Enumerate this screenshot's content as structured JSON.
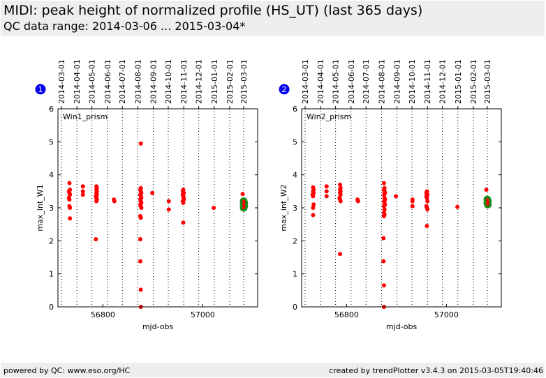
{
  "header": {
    "title": "MIDI: peak height of normalized profile (HS_UT) (last 365 days)",
    "subtitle": "QC data range: 2014-03-06 ... 2015-03-04*"
  },
  "footer": {
    "left": "powered by QC: www.eso.org/HC",
    "right": "created by trendPlotter v3.4.3 on 2015-03-05T19:40:46"
  },
  "colors": {
    "data_point": "#ff0000",
    "latest_marker": "#1a8a1a",
    "badge": "#0000ee",
    "header_bg": "#eeeeee"
  },
  "chart_data": [
    {
      "type": "scatter",
      "badge": "1",
      "panel_label": "Win1_prism",
      "xlabel": "mjd-obs",
      "ylabel": "max_int_W1",
      "xlim": [
        56710,
        57110
      ],
      "ylim": [
        0,
        6
      ],
      "x_ticks": [
        56800,
        57000
      ],
      "y_ticks": [
        0,
        1,
        2,
        3,
        4,
        5,
        6
      ],
      "date_ticks": [
        {
          "label": "2014-03-01",
          "mjd": 56717
        },
        {
          "label": "2014-04-01",
          "mjd": 56748
        },
        {
          "label": "2014-05-01",
          "mjd": 56778
        },
        {
          "label": "2014-06-01",
          "mjd": 56809
        },
        {
          "label": "2014-07-01",
          "mjd": 56839
        },
        {
          "label": "2014-08-01",
          "mjd": 56870
        },
        {
          "label": "2014-09-01",
          "mjd": 56901
        },
        {
          "label": "2014-10-01",
          "mjd": 56931
        },
        {
          "label": "2014-11-01",
          "mjd": 56962
        },
        {
          "label": "2014-12-01",
          "mjd": 56992
        },
        {
          "label": "2015-01-01",
          "mjd": 57023
        },
        {
          "label": "2015-02-01",
          "mjd": 57054
        },
        {
          "label": "2015-03-01",
          "mjd": 57082
        }
      ],
      "points": [
        [
          56733,
          3.75
        ],
        [
          56732,
          3.5
        ],
        [
          56733,
          3.45
        ],
        [
          56734,
          3.4
        ],
        [
          56732,
          3.3
        ],
        [
          56733,
          3.25
        ],
        [
          56734,
          3.55
        ],
        [
          56733,
          3.05
        ],
        [
          56734,
          3.0
        ],
        [
          56734,
          2.68
        ],
        [
          56760,
          3.65
        ],
        [
          56760,
          3.5
        ],
        [
          56760,
          3.4
        ],
        [
          56787,
          3.65
        ],
        [
          56788,
          3.6
        ],
        [
          56787,
          3.55
        ],
        [
          56788,
          3.5
        ],
        [
          56787,
          3.45
        ],
        [
          56788,
          3.4
        ],
        [
          56786,
          3.35
        ],
        [
          56787,
          3.3
        ],
        [
          56788,
          3.25
        ],
        [
          56787,
          3.2
        ],
        [
          56786,
          2.05
        ],
        [
          56822,
          3.25
        ],
        [
          56823,
          3.2
        ],
        [
          56876,
          4.95
        ],
        [
          56876,
          3.6
        ],
        [
          56875,
          3.55
        ],
        [
          56876,
          3.5
        ],
        [
          56877,
          3.45
        ],
        [
          56875,
          3.4
        ],
        [
          56876,
          3.35
        ],
        [
          56877,
          3.3
        ],
        [
          56875,
          3.25
        ],
        [
          56876,
          3.2
        ],
        [
          56877,
          3.15
        ],
        [
          56875,
          3.1
        ],
        [
          56876,
          3.05
        ],
        [
          56877,
          3.0
        ],
        [
          56875,
          2.75
        ],
        [
          56876,
          2.7
        ],
        [
          56875,
          2.05
        ],
        [
          56875,
          1.38
        ],
        [
          56876,
          0.52
        ],
        [
          56876,
          0.0
        ],
        [
          56899,
          3.45
        ],
        [
          56932,
          3.2
        ],
        [
          56932,
          2.95
        ],
        [
          56960,
          3.5
        ],
        [
          56961,
          3.55
        ],
        [
          56962,
          3.45
        ],
        [
          56960,
          3.4
        ],
        [
          56961,
          3.35
        ],
        [
          56962,
          3.3
        ],
        [
          56960,
          3.2
        ],
        [
          56961,
          3.15
        ],
        [
          56962,
          3.25
        ],
        [
          56961,
          2.55
        ],
        [
          57022,
          3.0
        ],
        [
          57080,
          3.42
        ],
        [
          57082,
          3.15
        ],
        [
          57083,
          3.05
        ]
      ],
      "latest": [
        [
          57082,
          3.2
        ],
        [
          57083,
          3.15
        ],
        [
          57082,
          3.1
        ],
        [
          57083,
          3.05
        ],
        [
          57082,
          3.0
        ]
      ]
    },
    {
      "type": "scatter",
      "badge": "2",
      "panel_label": "Win2_prism",
      "xlabel": "mjd-obs",
      "ylabel": "max_int_W2",
      "xlim": [
        56710,
        57110
      ],
      "ylim": [
        0,
        6
      ],
      "x_ticks": [
        56800,
        57000
      ],
      "y_ticks": [
        0,
        1,
        2,
        3,
        4,
        5,
        6
      ],
      "date_ticks": [
        {
          "label": "2014-03-01",
          "mjd": 56717
        },
        {
          "label": "2014-04-01",
          "mjd": 56748
        },
        {
          "label": "2014-05-01",
          "mjd": 56778
        },
        {
          "label": "2014-06-01",
          "mjd": 56809
        },
        {
          "label": "2014-07-01",
          "mjd": 56839
        },
        {
          "label": "2014-08-01",
          "mjd": 56870
        },
        {
          "label": "2014-09-01",
          "mjd": 56901
        },
        {
          "label": "2014-10-01",
          "mjd": 56931
        },
        {
          "label": "2014-11-01",
          "mjd": 56962
        },
        {
          "label": "2014-12-01",
          "mjd": 56992
        },
        {
          "label": "2015-01-01",
          "mjd": 57023
        },
        {
          "label": "2015-02-01",
          "mjd": 57054
        },
        {
          "label": "2015-03-01",
          "mjd": 57082
        }
      ],
      "points": [
        [
          56733,
          3.62
        ],
        [
          56734,
          3.55
        ],
        [
          56733,
          3.5
        ],
        [
          56734,
          3.45
        ],
        [
          56732,
          3.4
        ],
        [
          56733,
          3.35
        ],
        [
          56734,
          3.1
        ],
        [
          56733,
          3.0
        ],
        [
          56733,
          2.78
        ],
        [
          56760,
          3.65
        ],
        [
          56760,
          3.5
        ],
        [
          56760,
          3.35
        ],
        [
          56787,
          3.7
        ],
        [
          56788,
          3.6
        ],
        [
          56787,
          3.55
        ],
        [
          56788,
          3.5
        ],
        [
          56787,
          3.45
        ],
        [
          56788,
          3.4
        ],
        [
          56786,
          3.3
        ],
        [
          56787,
          3.25
        ],
        [
          56788,
          3.2
        ],
        [
          56787,
          1.6
        ],
        [
          56822,
          3.25
        ],
        [
          56823,
          3.2
        ],
        [
          56875,
          3.75
        ],
        [
          56876,
          3.6
        ],
        [
          56875,
          3.55
        ],
        [
          56876,
          3.5
        ],
        [
          56877,
          3.45
        ],
        [
          56875,
          3.4
        ],
        [
          56876,
          3.3
        ],
        [
          56877,
          3.25
        ],
        [
          56875,
          3.2
        ],
        [
          56876,
          3.15
        ],
        [
          56877,
          3.1
        ],
        [
          56875,
          3.05
        ],
        [
          56876,
          2.95
        ],
        [
          56875,
          2.85
        ],
        [
          56876,
          2.8
        ],
        [
          56875,
          2.75
        ],
        [
          56874,
          2.08
        ],
        [
          56874,
          1.38
        ],
        [
          56875,
          0.65
        ],
        [
          56875,
          0.0
        ],
        [
          56899,
          3.35
        ],
        [
          56932,
          3.25
        ],
        [
          56932,
          3.2
        ],
        [
          56932,
          3.05
        ],
        [
          56960,
          3.45
        ],
        [
          56961,
          3.5
        ],
        [
          56962,
          3.4
        ],
        [
          56960,
          3.35
        ],
        [
          56961,
          3.3
        ],
        [
          56962,
          3.2
        ],
        [
          56960,
          3.05
        ],
        [
          56961,
          3.0
        ],
        [
          56962,
          2.95
        ],
        [
          56961,
          2.45
        ],
        [
          57022,
          3.03
        ],
        [
          57080,
          3.55
        ],
        [
          57083,
          3.2
        ]
      ],
      "latest": [
        [
          57082,
          3.25
        ],
        [
          57083,
          3.2
        ],
        [
          57082,
          3.15
        ],
        [
          57083,
          3.1
        ]
      ]
    }
  ]
}
